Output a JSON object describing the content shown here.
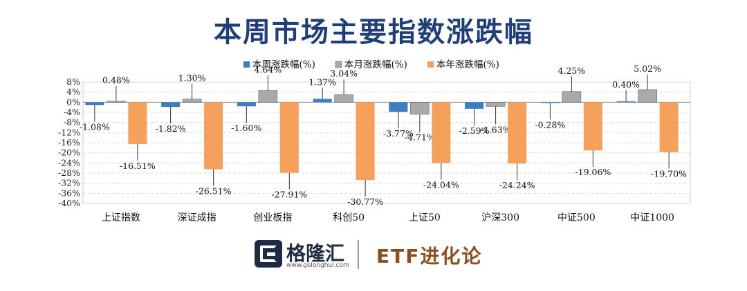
{
  "header": {
    "title": "本周市场主要指数涨跌幅"
  },
  "footer": {
    "logo_text": "格隆汇",
    "logo_url": "www.gelonghui.com",
    "brand": "ETF进化论"
  },
  "colors": {
    "weekly": "#3c7dc4",
    "monthly": "#a9a9a9",
    "yearly": "#f5a15c"
  },
  "chart_data": {
    "type": "bar",
    "title": "",
    "xlabel": "",
    "ylabel": "",
    "ylim": [
      -40,
      8
    ],
    "yticks": [
      "8%",
      "4%",
      "0%",
      "-4%",
      "-8%",
      "-12%",
      "-16%",
      "-20%",
      "-24%",
      "-28%",
      "-32%",
      "-36%",
      "-40%"
    ],
    "grid": true,
    "legend_position": "top",
    "categories": [
      "上证指数",
      "深证成指",
      "创业板指",
      "科创50",
      "上证50",
      "沪深300",
      "中证500",
      "中证1000"
    ],
    "series": [
      {
        "name": "本周涨跌幅(%)",
        "values": [
          -1.08,
          -1.82,
          -1.6,
          1.37,
          -3.77,
          -2.59,
          -0.28,
          0.4
        ],
        "labels": [
          "-1.08%",
          "-1.82%",
          "-1.60%",
          "1.37%",
          "-3.77%",
          "-2.59%",
          "-0.28%",
          "0.40%"
        ]
      },
      {
        "name": "本月涨跌幅(%)",
        "values": [
          0.48,
          1.3,
          4.64,
          3.04,
          -4.71,
          -1.63,
          4.25,
          5.02
        ],
        "labels": [
          "0.48%",
          "1.30%",
          "4.64%",
          "3.04%",
          "-4.71%",
          "-1.63%",
          "4.25%",
          "5.02%"
        ]
      },
      {
        "name": "本年涨跌幅(%)",
        "values": [
          -16.51,
          -26.51,
          -27.91,
          -30.77,
          -24.04,
          -24.24,
          -19.06,
          -19.7
        ],
        "labels": [
          "-16.51%",
          "-26.51%",
          "-27.91%",
          "-30.77%",
          "-24.04%",
          "-24.24%",
          "-19.06%",
          "-19.70%"
        ]
      }
    ]
  }
}
